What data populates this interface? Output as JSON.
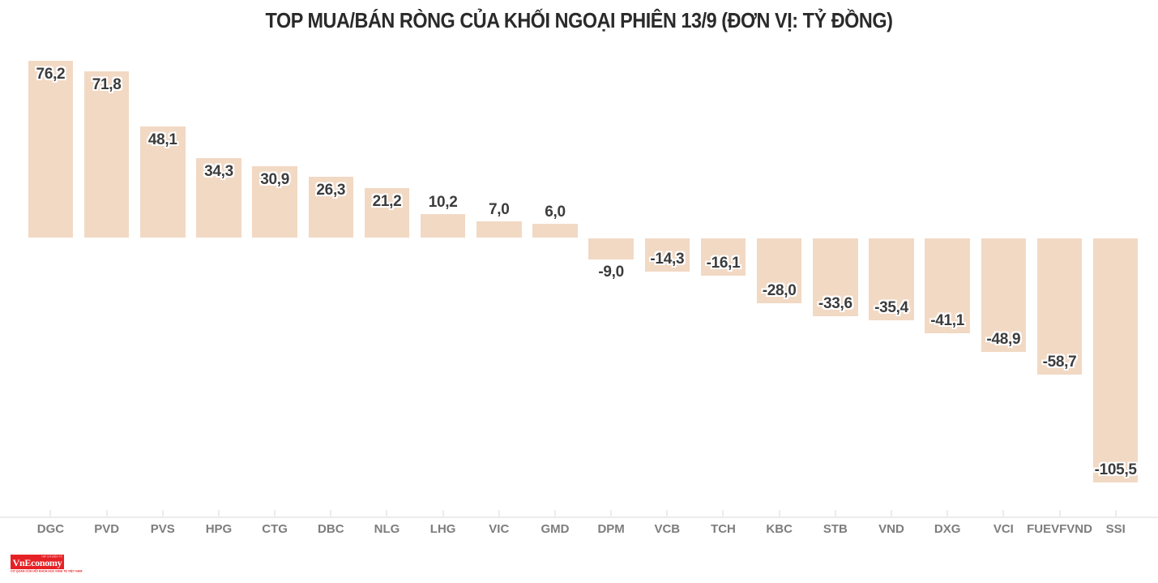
{
  "title": "TOP MUA/BÁN RÒNG CỦA KHỐI NGOẠI PHIÊN 13/9 (ĐƠN VỊ: TỶ ĐỒNG)",
  "chart_data": {
    "type": "bar",
    "title": "TOP MUA/BÁN RÒNG CỦA KHỐI NGOẠI PHIÊN 13/9 (ĐƠN VỊ: TỶ ĐỒNG)",
    "unit": "tỷ đồng",
    "categories": [
      "DGC",
      "PVD",
      "PVS",
      "HPG",
      "CTG",
      "DBC",
      "NLG",
      "LHG",
      "VIC",
      "GMD",
      "DPM",
      "VCB",
      "TCH",
      "KBC",
      "STB",
      "VND",
      "DXG",
      "VCI",
      "FUEVFVND",
      "SSI"
    ],
    "values": [
      76.2,
      71.8,
      48.1,
      34.3,
      30.9,
      26.3,
      21.2,
      10.2,
      7.0,
      6.0,
      -9.0,
      -14.3,
      -16.1,
      -28.0,
      -33.6,
      -35.4,
      -41.1,
      -48.9,
      -58.7,
      -105.5
    ],
    "value_labels": [
      "76,2",
      "71,8",
      "48,1",
      "34,3",
      "30,9",
      "26,3",
      "21,2",
      "10,2",
      "7,0",
      "6,0",
      "-9,0",
      "-14,3",
      "-16,1",
      "-28,0",
      "-33,6",
      "-35,4",
      "-41,1",
      "-48,9",
      "-58,7",
      "-105,5"
    ],
    "xlabel": "",
    "ylabel": "",
    "ylim": [
      -110,
      80
    ],
    "grid": false,
    "legend": null,
    "bar_color": "#f2d9c4",
    "value_label_color": "#3c3c3c",
    "category_label_color": "#7d7d7d",
    "axis_color": "#ececec"
  },
  "logo": {
    "wordmark": "VnEconomy",
    "top_text": "TẠP CHÍ ĐIỆN TỬ",
    "tagline": "CƠ QUAN CỦA HỘI KHOA HỌC KINH TẾ VIỆT NAM",
    "bg_color": "#e62125"
  },
  "colors": {
    "background": "#ffffff",
    "title": "#2a2a2a",
    "bar": "#f2d9c4",
    "axis": "#ececec"
  }
}
